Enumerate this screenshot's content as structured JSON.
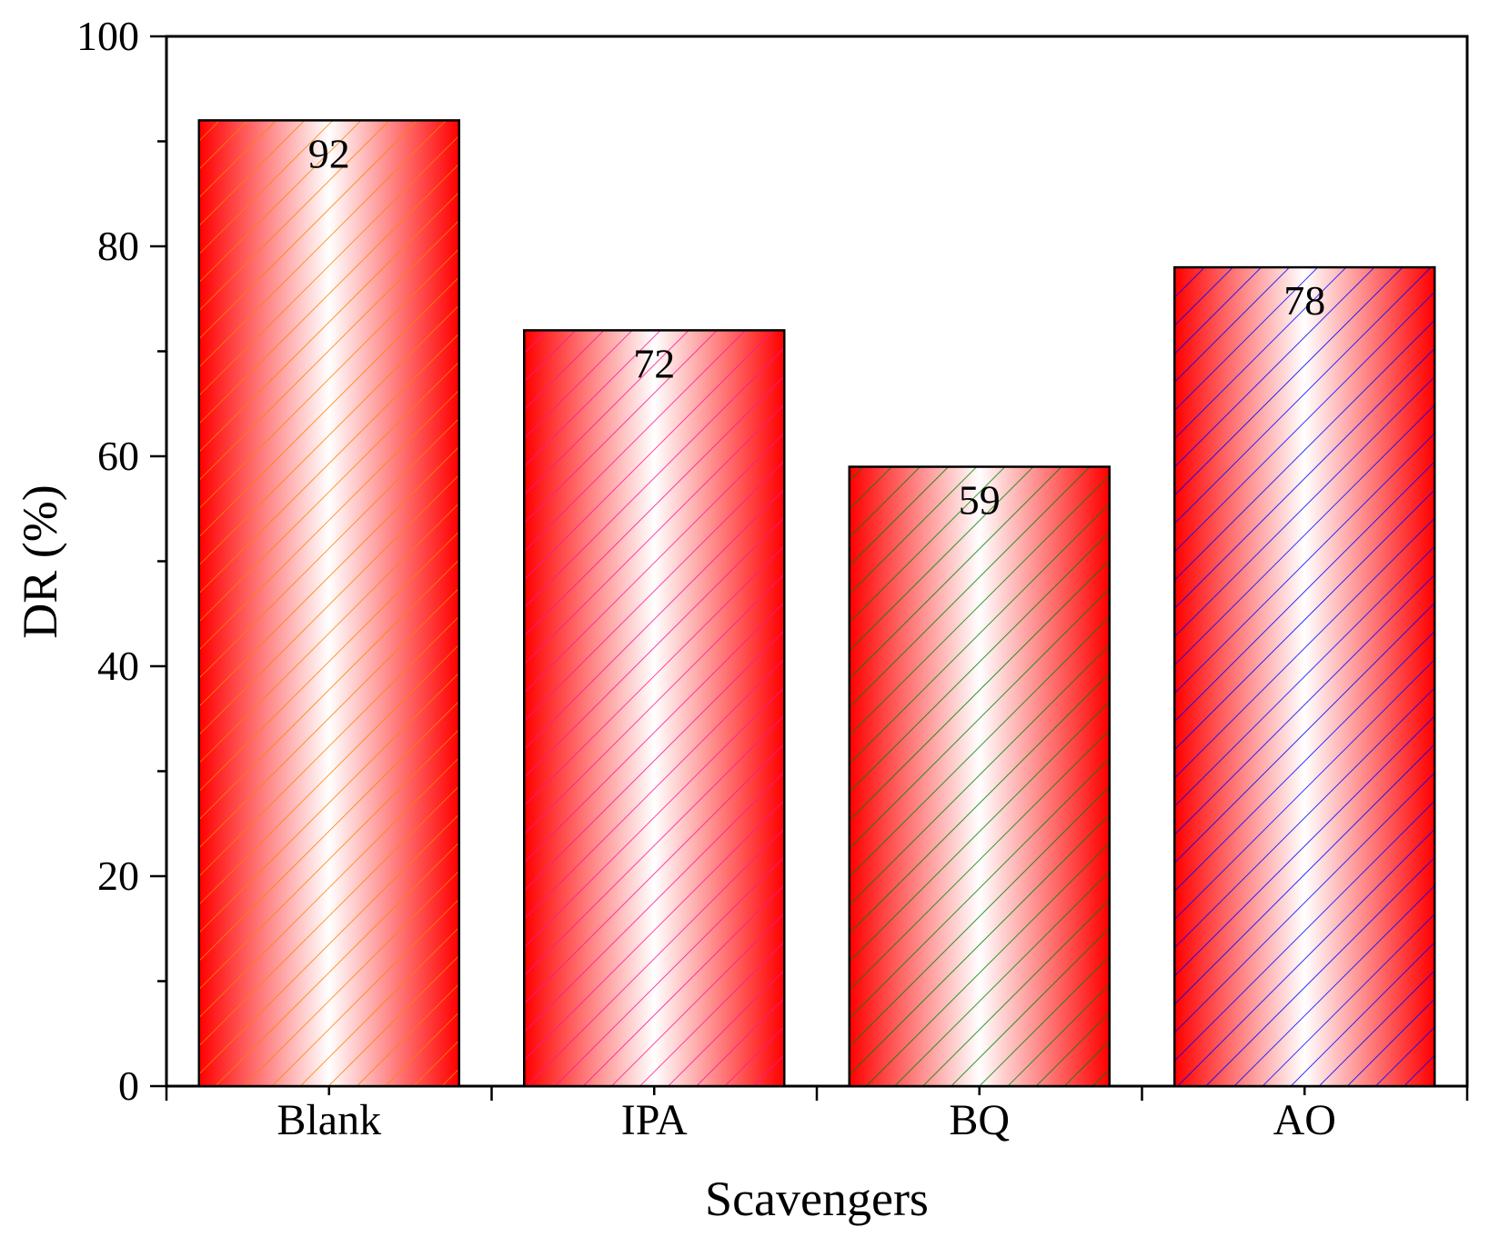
{
  "chart_data": {
    "type": "bar",
    "title": "",
    "xlabel": "Scavengers",
    "ylabel": "DR (%)",
    "ylim": [
      0,
      100
    ],
    "yticks": [
      0,
      20,
      40,
      60,
      80,
      100
    ],
    "y_minor_step": 10,
    "categories": [
      "Blank",
      "IPA",
      "BQ",
      "AO"
    ],
    "values": [
      92,
      72,
      59,
      78
    ],
    "data_labels": [
      "92",
      "72",
      "59",
      "78"
    ],
    "bar_fill_colors": {
      "edge": "#ff0000",
      "center": "#ffffff"
    },
    "hatch_colors": [
      "#ff8000",
      "#ff1493",
      "#008000",
      "#0000ff"
    ],
    "grid": false,
    "legend": "none",
    "box_frame": true
  }
}
